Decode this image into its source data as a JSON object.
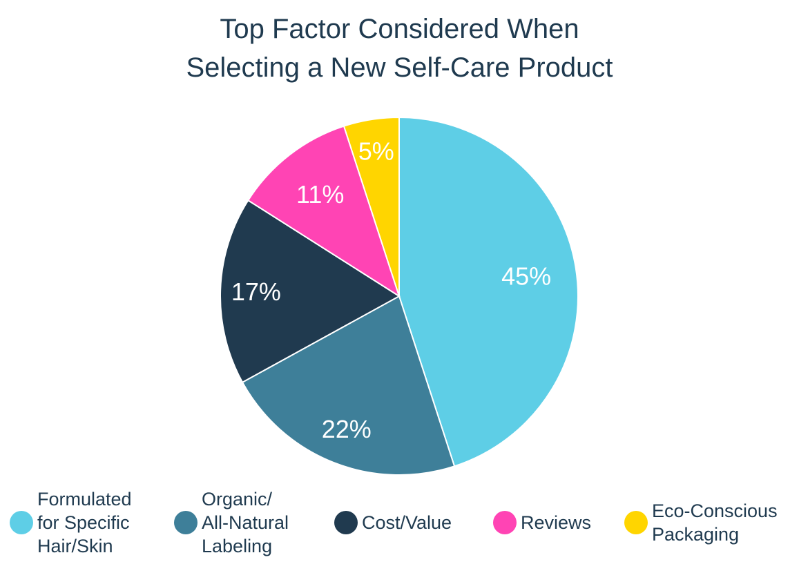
{
  "chart_data": {
    "type": "pie",
    "title_lines": [
      "Top Factor Considered When",
      "Selecting a New Self-Care Product"
    ],
    "categories": [
      "Formulated for Specific Hair/Skin",
      "Organic/ All-Natural Labeling",
      "Cost/Value",
      "Reviews",
      "Eco-Conscious Packaging"
    ],
    "values": [
      45,
      22,
      17,
      11,
      5
    ],
    "value_labels": [
      "45%",
      "22%",
      "17%",
      "11%",
      "5%"
    ],
    "colors": [
      "#5ecee6",
      "#3e7f99",
      "#203a4f",
      "#ff44b4",
      "#ffd500"
    ],
    "legend_position": "bottom",
    "legend_lines": [
      "Formulated\nfor Specific\nHair/Skin",
      "Organic/\nAll-Natural\nLabeling",
      "Cost/Value",
      "Reviews",
      "Eco-Conscious\nPackaging"
    ]
  }
}
